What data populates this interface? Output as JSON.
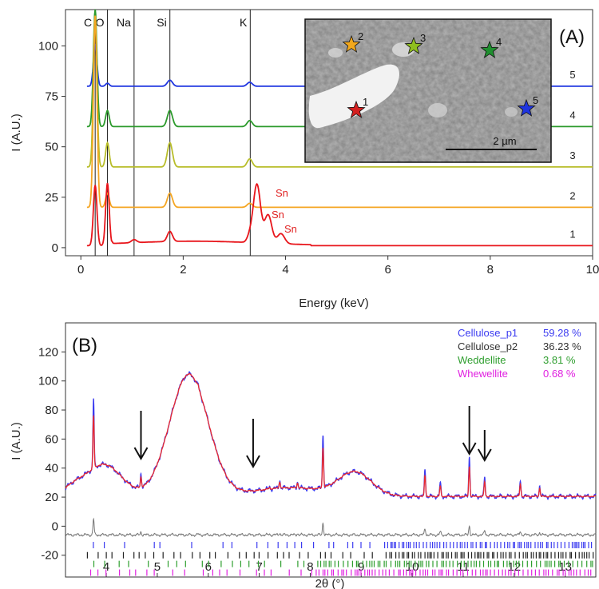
{
  "chart_data": [
    {
      "panel": "(A)",
      "type": "line",
      "xlabel": "Energy (keV)",
      "ylabel": "I (A.U.)",
      "xlim": [
        -0.3,
        10
      ],
      "ylim": [
        -4,
        118
      ],
      "xticks": [
        0,
        2,
        4,
        6,
        8,
        10
      ],
      "yticks": [
        0,
        25,
        50,
        75,
        100
      ],
      "element_lines": [
        {
          "label": "C",
          "x": 0.28
        },
        {
          "label": "O",
          "x": 0.52
        },
        {
          "label": "Na",
          "x": 1.04
        },
        {
          "label": "Si",
          "x": 1.74
        },
        {
          "label": "K",
          "x": 3.31
        }
      ],
      "series": [
        {
          "name": "1",
          "color": "#e8151b",
          "baseline": 1,
          "peaks": [
            [
              0.28,
              30
            ],
            [
              0.52,
              31
            ],
            [
              1.04,
              1.5
            ],
            [
              1.74,
              5
            ],
            [
              3.3,
              3
            ],
            [
              3.44,
              29
            ],
            [
              3.66,
              14
            ],
            [
              3.91,
              5
            ]
          ]
        },
        {
          "name": "2",
          "color": "#f5a623",
          "baseline": 20,
          "peaks": [
            [
              0.28,
              95
            ],
            [
              0.52,
              7
            ],
            [
              1.74,
              7
            ],
            [
              3.3,
              2
            ]
          ]
        },
        {
          "name": "3",
          "color": "#b8bd2a",
          "baseline": 40,
          "peaks": [
            [
              0.28,
              75
            ],
            [
              0.52,
              12
            ],
            [
              1.74,
              12
            ],
            [
              3.3,
              4
            ]
          ]
        },
        {
          "name": "4",
          "color": "#2b9a2b",
          "baseline": 60,
          "peaks": [
            [
              0.28,
              58
            ],
            [
              0.52,
              8
            ],
            [
              1.74,
              8
            ],
            [
              3.3,
              3
            ]
          ]
        },
        {
          "name": "5",
          "color": "#1f35e0",
          "baseline": 80,
          "peaks": [
            [
              0.28,
              20
            ],
            [
              0.52,
              1.5
            ],
            [
              1.74,
              3
            ],
            [
              3.3,
              2
            ]
          ]
        }
      ],
      "annotations": [
        "Sn",
        "Sn",
        "Sn"
      ],
      "inset": {
        "scale_bar": "2 µm",
        "markers": [
          {
            "label": "1",
            "color": "#d42020"
          },
          {
            "label": "2",
            "color": "#f2a81d"
          },
          {
            "label": "3",
            "color": "#8fbf1f"
          },
          {
            "label": "4",
            "color": "#1f8f2f"
          },
          {
            "label": "5",
            "color": "#1f35e0"
          }
        ]
      }
    },
    {
      "panel": "(B)",
      "type": "line",
      "xlabel": "2θ (°)",
      "ylabel": "I (A.U.)",
      "xlim": [
        3.2,
        13.6
      ],
      "ylim": [
        -35,
        140
      ],
      "xticks": [
        4,
        5,
        6,
        7,
        8,
        9,
        10,
        11,
        12,
        13
      ],
      "yticks": [
        -20,
        0,
        20,
        40,
        60,
        80,
        100,
        120
      ],
      "legend": [
        {
          "name": "Cellulose_p1",
          "value": "59.28 %",
          "color": "#3b3bf0"
        },
        {
          "name": "Cellulose_p2",
          "value": "36.23 %",
          "color": "#333333"
        },
        {
          "name": "Weddellite",
          "value": "3.81 %",
          "color": "#2e9e2e"
        },
        {
          "name": "Whewellite",
          "value": "0.68 %",
          "color": "#e020e0"
        }
      ],
      "arrows_at": [
        4.68,
        6.88,
        11.12,
        11.42
      ],
      "sharp_peaks": [
        [
          3.75,
          88
        ],
        [
          4.68,
          36
        ],
        [
          5.15,
          35
        ],
        [
          5.8,
          98
        ],
        [
          7.2,
          27
        ],
        [
          7.4,
          32
        ],
        [
          7.75,
          31
        ],
        [
          8.25,
          63
        ],
        [
          10.25,
          40
        ],
        [
          10.55,
          30
        ],
        [
          11.12,
          48
        ],
        [
          11.42,
          34
        ],
        [
          12.12,
          32
        ],
        [
          12.5,
          28
        ]
      ]
    }
  ]
}
